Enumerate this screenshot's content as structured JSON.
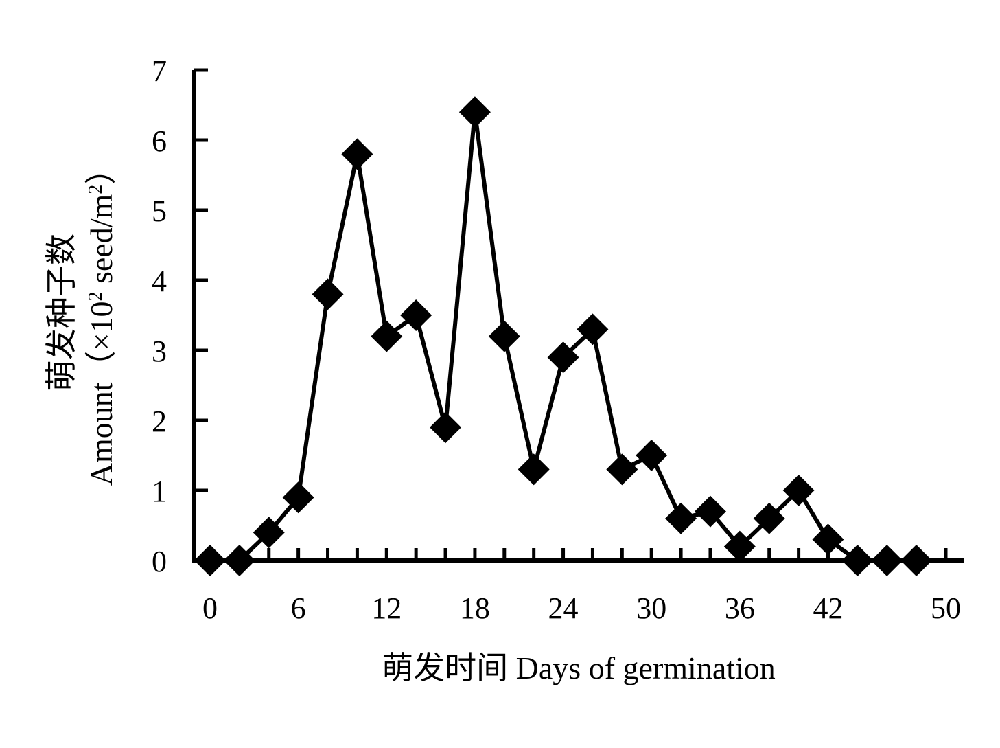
{
  "chart_data": {
    "type": "line",
    "title": "",
    "xlabel": "萌发时间 Days of germination",
    "ylabel_cn": "萌发种子数",
    "ylabel_en_prefix": "Amount（×10",
    "ylabel_en_sup1": "2",
    "ylabel_en_mid": " seed/m",
    "ylabel_en_sup2": "2",
    "ylabel_en_suffix": "）",
    "xlim": [
      0,
      50
    ],
    "ylim": [
      0,
      7
    ],
    "x_tick_labels": [
      {
        "x": 0,
        "label": "0"
      },
      {
        "x": 6,
        "label": "6"
      },
      {
        "x": 12,
        "label": "12"
      },
      {
        "x": 18,
        "label": "18"
      },
      {
        "x": 24,
        "label": "24"
      },
      {
        "x": 30,
        "label": "30"
      },
      {
        "x": 36,
        "label": "36"
      },
      {
        "x": 42,
        "label": "42"
      },
      {
        "x": 50,
        "label": "50"
      }
    ],
    "x_minor_ticks": [
      2,
      4,
      6,
      8,
      10,
      12,
      14,
      16,
      18,
      20,
      22,
      24,
      26,
      28,
      30,
      32,
      34,
      36,
      38,
      40,
      42,
      44,
      46,
      48,
      50
    ],
    "y_ticks": [
      0,
      1,
      2,
      3,
      4,
      5,
      6,
      7
    ],
    "grid": false,
    "legend": "none",
    "marker": "diamond",
    "color": "#000000",
    "series": [
      {
        "x": [
          0,
          2,
          4,
          6,
          8,
          10,
          12,
          14,
          16,
          18,
          20,
          22,
          24,
          26,
          28,
          30,
          32,
          34,
          36,
          38,
          40,
          42,
          44,
          46,
          48
        ],
        "values": [
          0,
          0,
          0.4,
          0.9,
          3.8,
          5.8,
          3.2,
          3.5,
          1.9,
          6.4,
          3.2,
          1.3,
          2.9,
          3.3,
          1.3,
          1.5,
          0.6,
          0.7,
          0.2,
          0.6,
          1.0,
          0.3,
          0,
          0,
          0
        ]
      }
    ]
  }
}
